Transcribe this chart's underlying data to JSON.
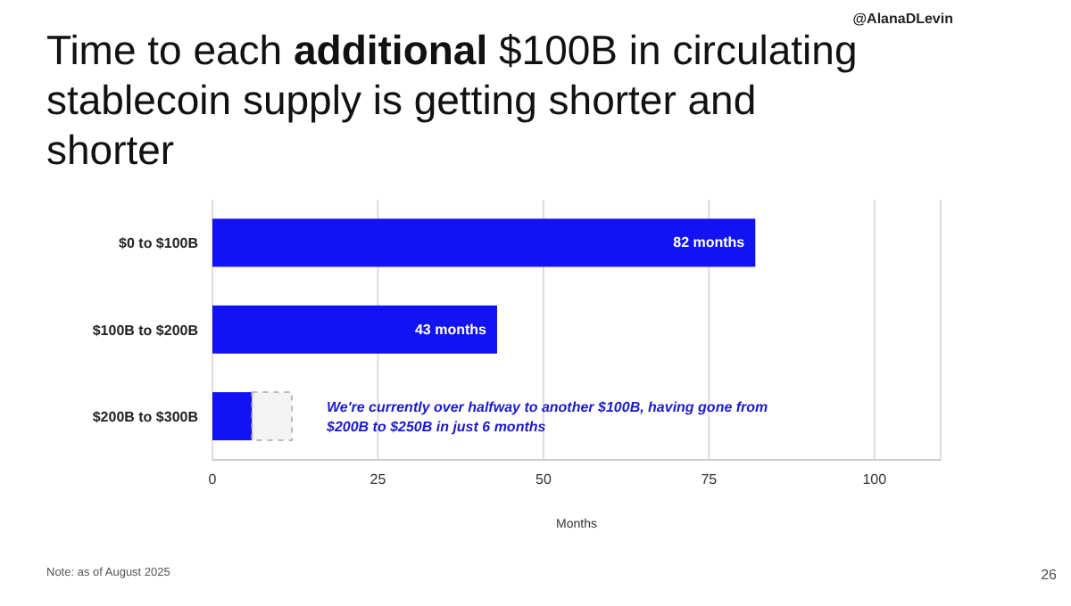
{
  "chart_data": {
    "type": "bar",
    "orientation": "horizontal",
    "title": "Time to each **additional** $100B in circulating stablecoin supply is getting shorter and shorter",
    "categories": [
      "$0 to $100B",
      "$100B to $200B",
      "$200B to $300B"
    ],
    "values": [
      82,
      43,
      6
    ],
    "value_labels": [
      "82 months",
      "43 months",
      null
    ],
    "color": "#1212f2",
    "xlabel": "Months",
    "xlim": [
      0,
      110
    ],
    "xticks": [
      0,
      25,
      50,
      75,
      100
    ],
    "grid": "x",
    "annotations": [
      "@AlanaDLevin",
      "We're currently over halfway to another $100B, having gone from $200B to $250B in just 6 months",
      "Note: as of August 2025",
      "26"
    ]
  }
}
